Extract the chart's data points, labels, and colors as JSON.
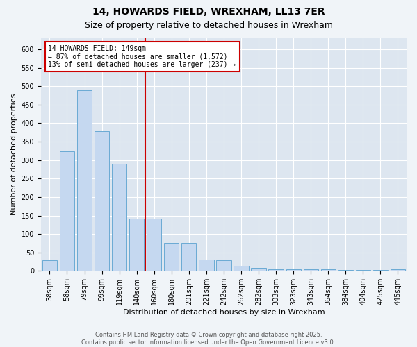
{
  "title": "14, HOWARDS FIELD, WREXHAM, LL13 7ER",
  "subtitle": "Size of property relative to detached houses in Wrexham",
  "xlabel": "Distribution of detached houses by size in Wrexham",
  "ylabel": "Number of detached properties",
  "categories": [
    "38sqm",
    "58sqm",
    "79sqm",
    "99sqm",
    "119sqm",
    "140sqm",
    "160sqm",
    "180sqm",
    "201sqm",
    "221sqm",
    "242sqm",
    "262sqm",
    "282sqm",
    "303sqm",
    "323sqm",
    "343sqm",
    "364sqm",
    "384sqm",
    "404sqm",
    "425sqm",
    "445sqm"
  ],
  "values": [
    28,
    323,
    490,
    378,
    290,
    142,
    142,
    75,
    75,
    30,
    28,
    14,
    8,
    5,
    4,
    4,
    4,
    2,
    2,
    2,
    4
  ],
  "bar_color": "#c5d8f0",
  "bar_edge_color": "#6aaad4",
  "vline_x_index": 5.5,
  "vline_color": "#cc0000",
  "annotation_text": "14 HOWARDS FIELD: 149sqm\n← 87% of detached houses are smaller (1,572)\n13% of semi-detached houses are larger (237) →",
  "annotation_box_color": "#cc0000",
  "footer": "Contains HM Land Registry data © Crown copyright and database right 2025.\nContains public sector information licensed under the Open Government Licence v3.0.",
  "ylim": [
    0,
    630
  ],
  "yticks": [
    0,
    50,
    100,
    150,
    200,
    250,
    300,
    350,
    400,
    450,
    500,
    550,
    600
  ],
  "fig_bg_color": "#f0f4f8",
  "plot_bg_color": "#dde6f0",
  "grid_color": "#ffffff",
  "title_fontsize": 10,
  "subtitle_fontsize": 9,
  "tick_fontsize": 7,
  "ylabel_fontsize": 8,
  "xlabel_fontsize": 8,
  "annotation_fontsize": 7,
  "footer_fontsize": 6
}
